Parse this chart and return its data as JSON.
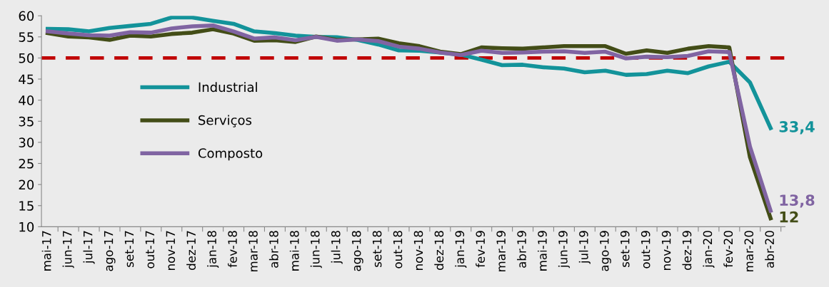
{
  "chart_data": {
    "type": "line",
    "categories": [
      "mai-17",
      "jun-17",
      "jul-17",
      "ago-17",
      "set-17",
      "out-17",
      "nov-17",
      "dez-17",
      "jan-18",
      "fev-18",
      "mar-18",
      "abr-18",
      "mai-18",
      "jun-18",
      "jul-18",
      "ago-18",
      "set-18",
      "out-18",
      "nov-18",
      "dez-18",
      "jan-19",
      "fev-19",
      "mar-19",
      "abr-19",
      "mai-19",
      "jun-19",
      "jul-19",
      "ago-19",
      "set-19",
      "out-19",
      "nov-19",
      "dez-19",
      "jan-20",
      "fev-20",
      "mar-20",
      "abr-20"
    ],
    "series": [
      {
        "name": "Industrial",
        "color": "#13939a",
        "values": [
          56.9,
          56.8,
          56.3,
          57.1,
          57.6,
          58.1,
          59.6,
          59.6,
          58.8,
          58.1,
          56.3,
          55.9,
          55.3,
          55.0,
          54.9,
          54.3,
          53.2,
          51.8,
          51.7,
          51.3,
          50.8,
          49.6,
          48.3,
          48.4,
          47.8,
          47.5,
          46.6,
          47.0,
          46.0,
          46.2,
          47.0,
          46.4,
          48.0,
          49.1,
          44.2,
          33.4
        ],
        "value_labels": [
          null,
          null,
          null,
          null,
          null,
          null,
          null,
          null,
          null,
          null,
          null,
          null,
          null,
          null,
          null,
          null,
          null,
          null,
          null,
          null,
          null,
          null,
          null,
          null,
          null,
          null,
          null,
          null,
          null,
          null,
          null,
          null,
          null,
          null,
          null,
          "33,4"
        ]
      },
      {
        "name": "Serviços",
        "color": "#434d17",
        "values": [
          55.9,
          55.1,
          54.9,
          54.3,
          55.3,
          55.1,
          55.7,
          56.0,
          56.8,
          55.8,
          54.1,
          54.2,
          53.8,
          55.1,
          54.3,
          54.4,
          54.6,
          53.5,
          52.8,
          51.5,
          50.9,
          52.5,
          52.3,
          52.2,
          52.5,
          52.8,
          52.8,
          52.8,
          51.0,
          51.8,
          51.2,
          52.2,
          52.8,
          52.5,
          26.5,
          12
        ],
        "value_labels": [
          null,
          null,
          null,
          null,
          null,
          null,
          null,
          null,
          null,
          null,
          null,
          null,
          null,
          null,
          null,
          null,
          null,
          null,
          null,
          null,
          null,
          null,
          null,
          null,
          null,
          null,
          null,
          null,
          null,
          null,
          null,
          null,
          null,
          null,
          null,
          "12"
        ]
      },
      {
        "name": "Composto",
        "color": "#8064a2",
        "values": [
          56.3,
          55.8,
          55.4,
          55.3,
          56.1,
          56.0,
          57.0,
          57.5,
          57.7,
          56.3,
          54.6,
          54.9,
          54.2,
          55.0,
          54.1,
          54.4,
          54.0,
          52.7,
          52.2,
          51.3,
          50.7,
          51.7,
          51.2,
          51.3,
          51.5,
          51.6,
          51.2,
          51.5,
          49.9,
          50.3,
          50.2,
          50.5,
          51.6,
          51.4,
          29.0,
          13.8
        ],
        "value_labels": [
          null,
          null,
          null,
          null,
          null,
          null,
          null,
          null,
          null,
          null,
          null,
          null,
          null,
          null,
          null,
          null,
          null,
          null,
          null,
          null,
          null,
          null,
          null,
          null,
          null,
          null,
          null,
          null,
          null,
          null,
          null,
          null,
          null,
          null,
          null,
          "13,8"
        ]
      }
    ],
    "ylim": [
      10,
      60
    ],
    "yticks": [
      10,
      15,
      20,
      25,
      30,
      35,
      40,
      45,
      50,
      55,
      60
    ],
    "ref_lines": [
      {
        "axis": "y",
        "value": 50,
        "color": "#c00000",
        "line_style": "dashed"
      }
    ],
    "grid": false,
    "legend": "left",
    "marker": "none",
    "line_style": "solid"
  }
}
